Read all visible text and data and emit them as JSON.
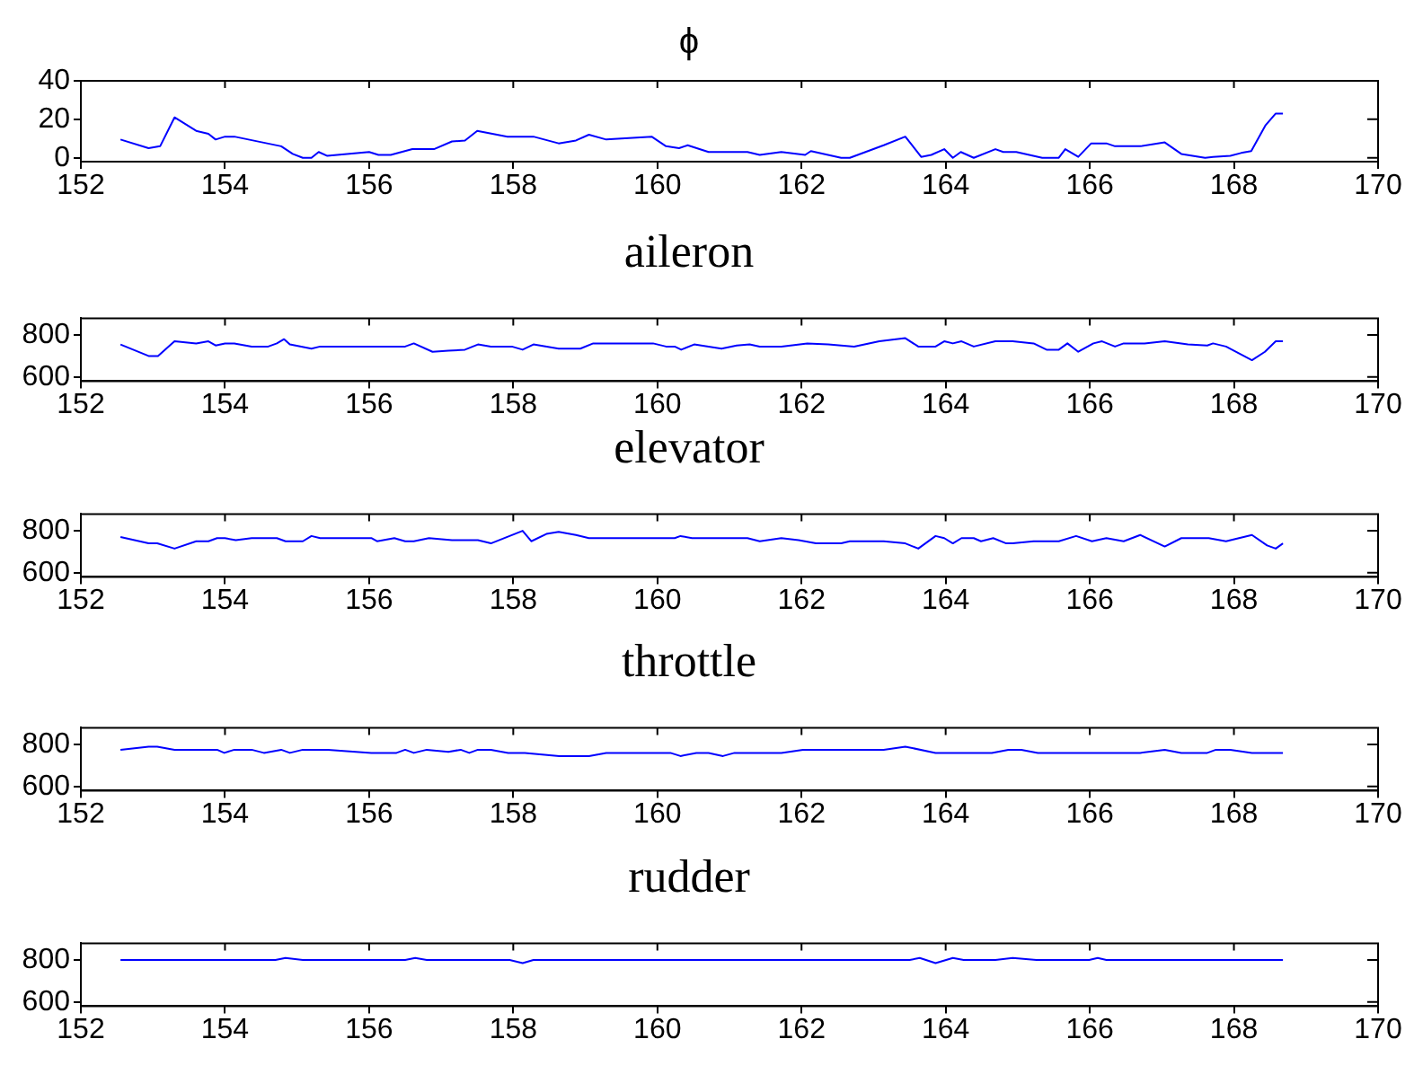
{
  "chart_data": [
    {
      "type": "line",
      "title": "ϕ",
      "xlim": [
        152,
        170
      ],
      "xticks": [
        152,
        154,
        156,
        158,
        160,
        162,
        164,
        166,
        168,
        170
      ],
      "ylim": [
        -2,
        40
      ],
      "yticks": [
        0,
        20,
        40
      ],
      "grid": false,
      "x": [
        152.55,
        152.94,
        153.1,
        153.3,
        153.6,
        153.77,
        153.87,
        154,
        154.13,
        154.78,
        154.94,
        155.08,
        155.2,
        155.3,
        155.42,
        156,
        156.13,
        156.3,
        156.6,
        156.9,
        157.15,
        157.33,
        157.5,
        157.92,
        158.28,
        158.63,
        158.87,
        159.05,
        159.29,
        159.92,
        160.12,
        160.3,
        160.42,
        160.71,
        161.25,
        161.42,
        161.72,
        162.05,
        162.13,
        162.55,
        162.67,
        163.14,
        163.44,
        163.66,
        163.8,
        163.98,
        164.1,
        164.21,
        164.39,
        164.69,
        164.8,
        164.98,
        165.34,
        165.57,
        165.66,
        165.84,
        166.02,
        166.23,
        166.35,
        166.7,
        167.04,
        167.27,
        167.6,
        167.71,
        167.95,
        168.1,
        168.24,
        168.44,
        168.58,
        168.68
      ],
      "series": [
        {
          "color": "#0000ff",
          "values": [
            9.5,
            5,
            6,
            21,
            14,
            12.5,
            9.5,
            11,
            11,
            6,
            2,
            0,
            0,
            3,
            1,
            3,
            1.5,
            1.5,
            4.5,
            4.5,
            8.5,
            9,
            14,
            11,
            11,
            7.5,
            9,
            12,
            9.5,
            11,
            6,
            5,
            6.5,
            3,
            3,
            1.5,
            3,
            1.5,
            3.5,
            0,
            0,
            6.5,
            11,
            0.5,
            1.5,
            4.5,
            0,
            3,
            0,
            4.5,
            3,
            3,
            0,
            0,
            4.5,
            0.5,
            7.5,
            7.5,
            6,
            6,
            8,
            2,
            0,
            0.5,
            1,
            2.5,
            3.5,
            17,
            23,
            23
          ]
        }
      ]
    },
    {
      "type": "line",
      "title": "aileron",
      "xlim": [
        152,
        170
      ],
      "xticks": [
        152,
        154,
        156,
        158,
        160,
        162,
        164,
        166,
        168,
        170
      ],
      "ylim": [
        580,
        880
      ],
      "yticks": [
        600,
        800
      ],
      "grid": false,
      "x": [
        152.55,
        152.94,
        153.07,
        153.3,
        153.6,
        153.77,
        153.87,
        154,
        154.13,
        154.37,
        154.6,
        154.72,
        154.82,
        154.9,
        155.2,
        155.32,
        156.5,
        156.62,
        156.88,
        157.1,
        157.33,
        157.51,
        157.69,
        157.98,
        158.13,
        158.28,
        158.63,
        158.93,
        159.11,
        159.94,
        160.12,
        160.24,
        160.33,
        160.51,
        160.89,
        161.1,
        161.28,
        161.42,
        161.72,
        162.08,
        162.37,
        162.73,
        163.08,
        163.44,
        163.62,
        163.86,
        163.98,
        164.1,
        164.22,
        164.39,
        164.69,
        164.93,
        165.22,
        165.4,
        165.57,
        165.69,
        165.84,
        166.05,
        166.17,
        166.35,
        166.47,
        166.76,
        167.04,
        167.36,
        167.63,
        167.71,
        167.89,
        168.25,
        168.43,
        168.58,
        168.68
      ],
      "series": [
        {
          "color": "#0000ff",
          "values": [
            755,
            700,
            700,
            770,
            760,
            770,
            750,
            760,
            760,
            745,
            745,
            760,
            780,
            755,
            735,
            745,
            745,
            760,
            720,
            725,
            730,
            755,
            745,
            745,
            730,
            755,
            735,
            735,
            760,
            760,
            745,
            745,
            730,
            755,
            735,
            750,
            755,
            745,
            745,
            760,
            755,
            745,
            770,
            785,
            745,
            745,
            770,
            760,
            770,
            745,
            770,
            770,
            760,
            730,
            730,
            760,
            720,
            760,
            770,
            745,
            760,
            760,
            770,
            755,
            750,
            760,
            745,
            680,
            720,
            770,
            770
          ]
        }
      ]
    },
    {
      "type": "line",
      "title": "elevator",
      "xlim": [
        152,
        170
      ],
      "xticks": [
        152,
        154,
        156,
        158,
        160,
        162,
        164,
        166,
        168,
        170
      ],
      "ylim": [
        580,
        880
      ],
      "yticks": [
        600,
        800
      ],
      "grid": false,
      "x": [
        152.55,
        152.94,
        153.06,
        153.3,
        153.6,
        153.77,
        153.89,
        154,
        154.15,
        154.37,
        154.72,
        154.84,
        155.08,
        155.2,
        155.32,
        156.03,
        156.11,
        156.35,
        156.5,
        156.62,
        156.83,
        157.15,
        157.51,
        157.69,
        158.13,
        158.25,
        158.46,
        158.63,
        158.87,
        159.05,
        160.24,
        160.32,
        160.48,
        161.25,
        161.42,
        161.72,
        161.96,
        162.2,
        162.55,
        162.67,
        163.14,
        163.44,
        163.62,
        163.86,
        163.98,
        164.1,
        164.22,
        164.39,
        164.49,
        164.66,
        164.84,
        164.93,
        165.22,
        165.57,
        165.81,
        166.03,
        166.23,
        166.47,
        166.7,
        167.04,
        167.27,
        167.65,
        167.89,
        168.25,
        168.46,
        168.58,
        168.68
      ],
      "series": [
        {
          "color": "#0000ff",
          "values": [
            770,
            740,
            740,
            715,
            750,
            750,
            765,
            765,
            755,
            765,
            765,
            750,
            750,
            775,
            765,
            765,
            750,
            765,
            750,
            750,
            765,
            755,
            755,
            740,
            800,
            750,
            785,
            795,
            780,
            765,
            765,
            775,
            765,
            765,
            750,
            765,
            755,
            740,
            740,
            750,
            750,
            740,
            715,
            775,
            765,
            740,
            765,
            765,
            750,
            765,
            740,
            740,
            750,
            750,
            775,
            750,
            765,
            750,
            780,
            725,
            765,
            765,
            750,
            780,
            730,
            715,
            740
          ]
        }
      ]
    },
    {
      "type": "line",
      "title": "throttle",
      "xlim": [
        152,
        170
      ],
      "xticks": [
        152,
        154,
        156,
        158,
        160,
        162,
        164,
        166,
        168,
        170
      ],
      "ylim": [
        580,
        880
      ],
      "yticks": [
        600,
        800
      ],
      "grid": false,
      "x": [
        152.55,
        152.94,
        153.06,
        153.3,
        153.89,
        153.99,
        154.13,
        154.37,
        154.54,
        154.78,
        154.9,
        155.08,
        155.43,
        156.03,
        156.38,
        156.5,
        156.62,
        156.8,
        157.1,
        157.27,
        157.39,
        157.51,
        157.69,
        157.93,
        158.16,
        158.64,
        159.05,
        159.29,
        160.18,
        160.32,
        160.54,
        160.71,
        160.91,
        161.07,
        161.72,
        162.02,
        163.14,
        163.44,
        163.86,
        164.64,
        164.87,
        165.05,
        165.28,
        166.7,
        167.04,
        167.27,
        167.63,
        167.75,
        167.95,
        168.25,
        168.68
      ],
      "series": [
        {
          "color": "#0000ff",
          "values": [
            775,
            790,
            790,
            775,
            775,
            760,
            775,
            775,
            760,
            775,
            760,
            775,
            775,
            760,
            760,
            775,
            760,
            775,
            765,
            775,
            760,
            775,
            775,
            760,
            760,
            745,
            745,
            760,
            760,
            745,
            760,
            760,
            745,
            760,
            760,
            775,
            775,
            790,
            760,
            760,
            775,
            775,
            760,
            760,
            775,
            760,
            760,
            775,
            775,
            760,
            760
          ]
        }
      ]
    },
    {
      "type": "line",
      "title": "rudder",
      "xlim": [
        152,
        170
      ],
      "xticks": [
        152,
        154,
        156,
        158,
        160,
        162,
        164,
        166,
        168,
        170
      ],
      "ylim": [
        580,
        880
      ],
      "yticks": [
        600,
        800
      ],
      "grid": false,
      "x": [
        152.55,
        154.7,
        154.84,
        155.08,
        156.5,
        156.64,
        156.8,
        157.95,
        158.13,
        158.28,
        163.5,
        163.64,
        163.86,
        164.1,
        164.25,
        164.69,
        164.93,
        165.26,
        165.99,
        166.11,
        166.23,
        168.68
      ],
      "series": [
        {
          "color": "#0000ff",
          "values": [
            800,
            800,
            810,
            800,
            800,
            810,
            800,
            800,
            785,
            800,
            800,
            810,
            785,
            810,
            800,
            800,
            810,
            800,
            800,
            810,
            800,
            800
          ]
        }
      ]
    }
  ]
}
